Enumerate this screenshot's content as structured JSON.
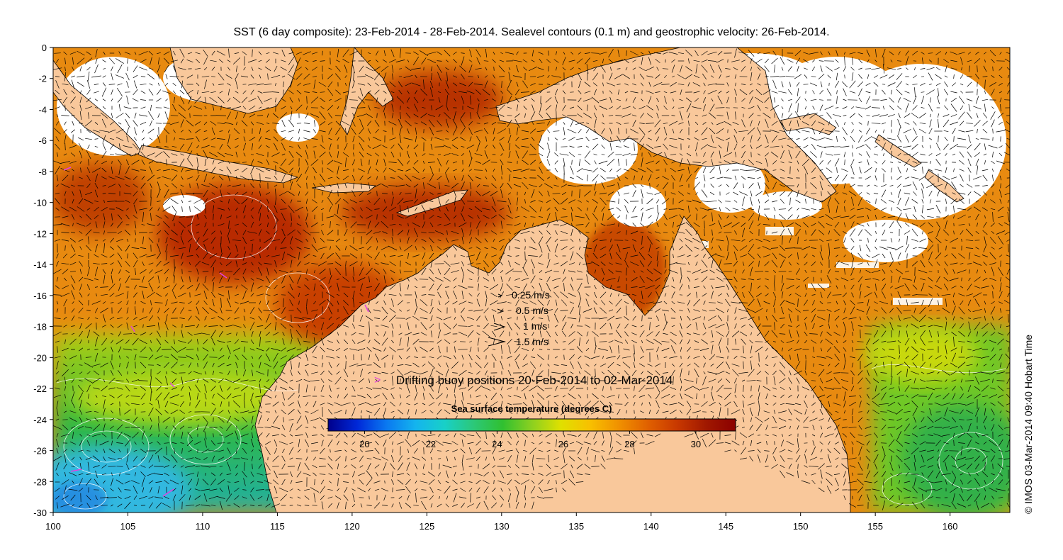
{
  "title": "SST (6 day composite): 23-Feb-2014 - 28-Feb-2014. Sealevel contours (0.1 m) and geostrophic velocity: 26-Feb-2014.",
  "credit": "© IMOS 03-Mar-2014 09:40 Hobart Time",
  "colors": {
    "land": "#f9c89b",
    "cloud": "#ffffff",
    "frame": "#000000",
    "buoy_marker": "#e040e0",
    "contour": "#ffffff"
  },
  "x_axis": {
    "range": [
      100,
      164
    ],
    "tick_labels": [
      "100",
      "105",
      "110",
      "115",
      "120",
      "125",
      "130",
      "135",
      "140",
      "145",
      "150",
      "155",
      "160"
    ]
  },
  "y_axis": {
    "range": [
      -30,
      0
    ],
    "tick_labels": [
      "0",
      "-2",
      "-4",
      "-6",
      "-8",
      "-10",
      "-12",
      "-14",
      "-16",
      "-18",
      "-20",
      "-22",
      "-24",
      "-26",
      "-28",
      "-30"
    ]
  },
  "velocity_legend": [
    {
      "label": "0.25 m/s",
      "speed": 0.25
    },
    {
      "label": "0.5 m/s",
      "speed": 0.5
    },
    {
      "label": "1 m/s",
      "speed": 1
    },
    {
      "label": "1.5 m/s",
      "speed": 1.5
    }
  ],
  "buoy_legend": {
    "marker": ">",
    "label": "Drifting buoy positions 20-Feb-2014 to 02-Mar-2014"
  },
  "colorbar": {
    "title": "Sea surface temperature (degrees C)",
    "range": [
      18.9,
      31.2
    ],
    "tick_labels": [
      "20",
      "22",
      "24",
      "26",
      "28",
      "30"
    ],
    "stops": [
      "#00008b",
      "#0028d8",
      "#0a78f0",
      "#14b4ee",
      "#18d0c8",
      "#2cc878",
      "#30c030",
      "#8cd020",
      "#e0e000",
      "#f8c000",
      "#f09000",
      "#e06000",
      "#c83800",
      "#a01800",
      "#8b0000"
    ]
  },
  "chart_data": {
    "type": "map",
    "x": {
      "label": "",
      "range": [
        100,
        164
      ]
    },
    "y": {
      "label": "",
      "range": [
        -30,
        0
      ]
    },
    "colorbar": {
      "title": "Sea surface temperature (degrees C)",
      "range": [
        18.9,
        31.2
      ]
    },
    "velocity_scale_m_s": [
      0.25,
      0.5,
      1,
      1.5
    ],
    "buoy_period": "20-Feb-2014 to 02-Mar-2014",
    "sst_date_range": "23-Feb-2014 - 28-Feb-2014",
    "sealevel_date": "26-Feb-2014",
    "contour_interval_m": 0.1
  }
}
